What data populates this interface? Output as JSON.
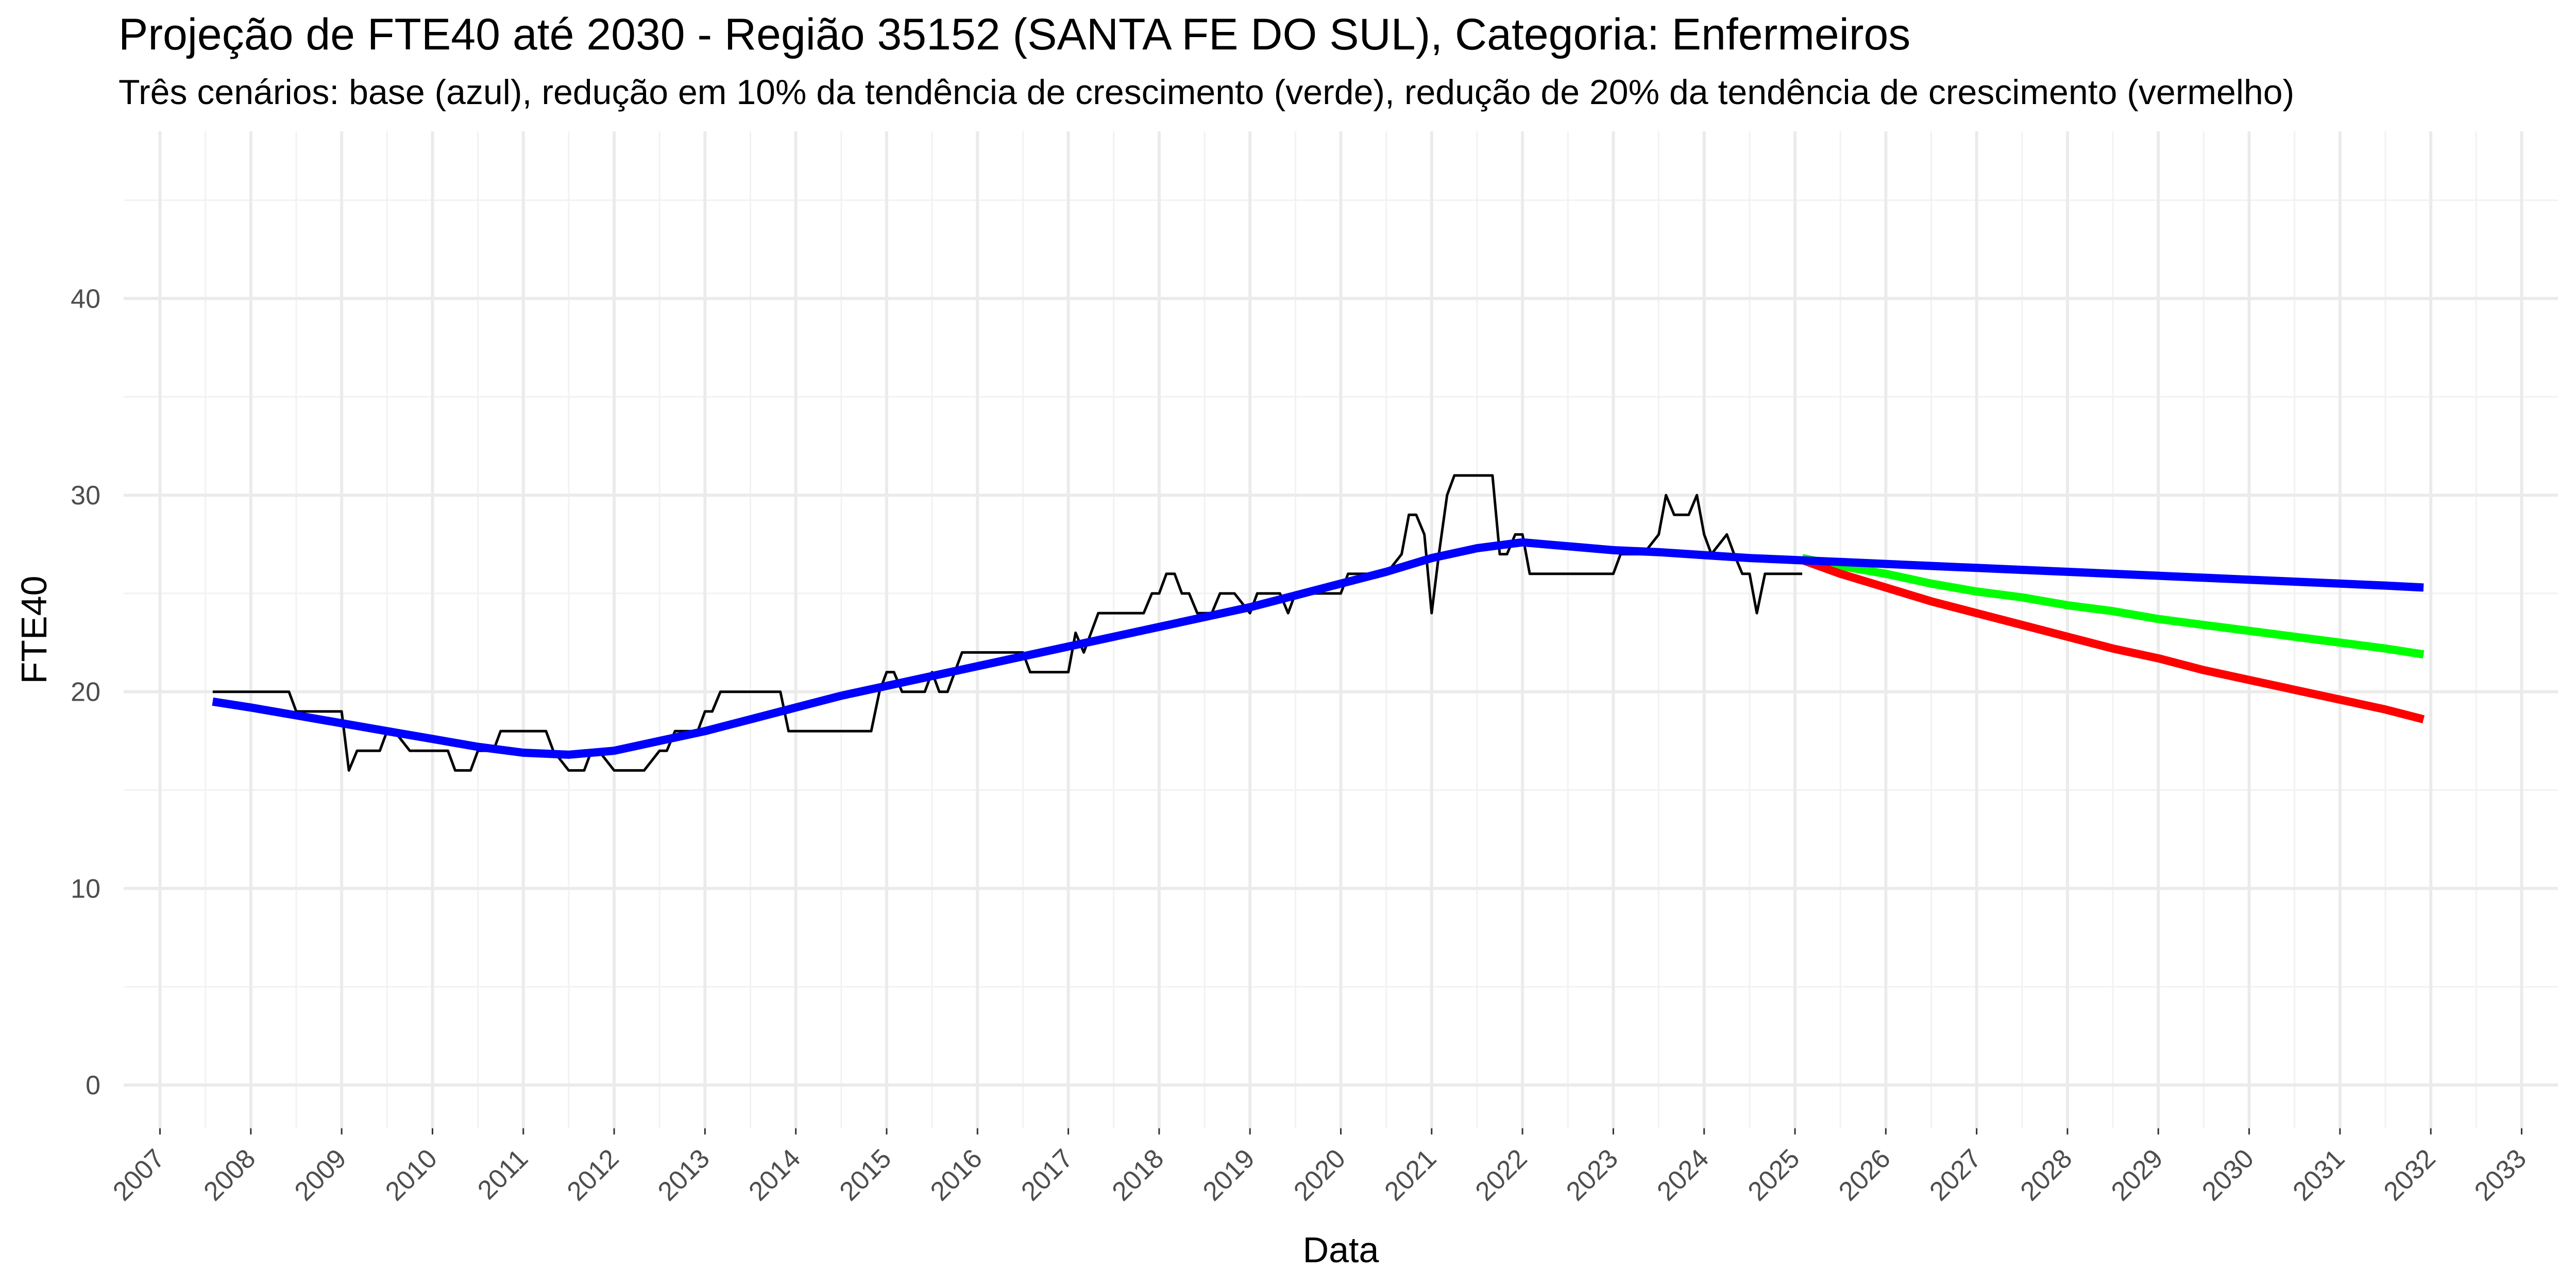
{
  "chart_data": {
    "type": "line",
    "title": "Projeção de FTE40 até 2030 - Região 35152 (SANTA FE DO SUL), Categoria: Enfermeiros",
    "subtitle": "Três cenários: base (azul), redução em 10% da tendência de crescimento (verde), redução de 20% da tendência de crescimento (vermelho)",
    "xlabel": "Data",
    "ylabel": "FTE40",
    "xlim": [
      2006.6,
      2033.4
    ],
    "ylim": [
      -2.2,
      48.5
    ],
    "x_ticks": [
      "2007",
      "2008",
      "2009",
      "2010",
      "2011",
      "2012",
      "2013",
      "2014",
      "2015",
      "2016",
      "2017",
      "2018",
      "2019",
      "2020",
      "2021",
      "2022",
      "2023",
      "2024",
      "2025",
      "2026",
      "2027",
      "2028",
      "2029",
      "2030",
      "2031",
      "2032",
      "2033"
    ],
    "y_ticks": [
      0,
      10,
      20,
      30,
      40
    ],
    "grid": true,
    "legend": "none",
    "series": [
      {
        "color": "#000000",
        "x": [
          2007.58,
          2008.42,
          2008.5,
          2009.0,
          2009.08,
          2009.17,
          2009.42,
          2009.5,
          2009.58,
          2009.75,
          2009.83,
          2010.17,
          2010.25,
          2010.42,
          2010.5,
          2010.67,
          2010.75,
          2010.83,
          2011.25,
          2011.33,
          2011.5,
          2011.67,
          2011.75,
          2011.83,
          2012.0,
          2012.08,
          2012.33,
          2012.5,
          2012.58,
          2012.67,
          2012.92,
          2013.0,
          2013.08,
          2013.17,
          2013.25,
          2013.83,
          2013.92,
          2014.67,
          2014.83,
          2014.92,
          2015.0,
          2015.08,
          2015.17,
          2015.42,
          2015.5,
          2015.58,
          2015.67,
          2015.75,
          2015.83,
          2016.0,
          2016.08,
          2016.17,
          2016.5,
          2016.58,
          2017.0,
          2017.08,
          2017.17,
          2017.25,
          2017.33,
          2017.42,
          2017.83,
          2017.92,
          2018.0,
          2018.08,
          2018.17,
          2018.25,
          2018.33,
          2018.42,
          2018.5,
          2018.58,
          2018.67,
          2018.75,
          2018.83,
          2019.0,
          2019.08,
          2019.17,
          2019.25,
          2019.33,
          2019.42,
          2019.5,
          2019.92,
          2020.0,
          2020.08,
          2020.5,
          2020.67,
          2020.75,
          2020.83,
          2020.92,
          2021.0,
          2021.08,
          2021.17,
          2021.25,
          2021.33,
          2021.42,
          2021.67,
          2021.75,
          2021.83,
          2021.92,
          2022.0,
          2022.08,
          2022.58,
          2022.67,
          2022.75,
          2023.0,
          2023.08,
          2023.17,
          2023.25,
          2023.33,
          2023.5,
          2023.58,
          2023.67,
          2023.75,
          2023.83,
          2023.92,
          2024.0,
          2024.08,
          2024.25,
          2024.33,
          2024.42,
          2024.5,
          2024.58,
          2024.67,
          2024.92,
          2025.08
        ],
        "y": [
          20,
          20,
          19,
          19,
          16,
          17,
          17,
          18,
          18,
          17,
          17,
          17,
          16,
          16,
          17,
          17,
          18,
          18,
          18,
          17,
          16,
          16,
          17,
          17,
          16,
          16,
          16,
          17,
          17,
          18,
          18,
          19,
          19,
          20,
          20,
          20,
          18,
          18,
          18,
          20,
          21,
          21,
          20,
          20,
          21,
          20,
          20,
          21,
          22,
          22,
          22,
          22,
          22,
          21,
          21,
          23,
          22,
          23,
          24,
          24,
          24,
          25,
          25,
          26,
          26,
          25,
          25,
          24,
          24,
          24,
          25,
          25,
          25,
          24,
          25,
          25,
          25,
          25,
          24,
          25,
          25,
          25,
          26,
          26,
          27,
          29,
          29,
          28,
          24,
          27,
          30,
          31,
          31,
          31,
          31,
          27,
          27,
          28,
          28,
          26,
          26,
          26,
          26,
          26,
          27,
          27,
          27,
          27,
          28,
          30,
          29,
          29,
          29,
          30,
          28,
          27,
          28,
          27,
          26,
          26,
          24,
          26,
          26,
          26
        ]
      },
      {
        "color": "#0000ff",
        "x": [
          2007.58,
          2008.0,
          2008.5,
          2009.0,
          2009.5,
          2010.0,
          2010.5,
          2011.0,
          2011.5,
          2012.0,
          2012.5,
          2013.0,
          2013.5,
          2014.0,
          2014.5,
          2015.0,
          2015.5,
          2016.0,
          2016.5,
          2017.0,
          2017.5,
          2018.0,
          2018.5,
          2019.0,
          2019.5,
          2020.0,
          2020.5,
          2021.0,
          2021.5,
          2022.0,
          2022.5,
          2023.0,
          2023.5,
          2024.0,
          2024.5,
          2025.0,
          2025.5,
          2026.0,
          2026.5,
          2027.0,
          2027.5,
          2028.0,
          2028.5,
          2029.0,
          2029.5,
          2030.0,
          2030.5,
          2031.0,
          2031.5,
          2031.92
        ],
        "y": [
          19.5,
          19.2,
          18.8,
          18.4,
          18.0,
          17.6,
          17.2,
          16.9,
          16.8,
          17.0,
          17.5,
          18.0,
          18.6,
          19.2,
          19.8,
          20.3,
          20.8,
          21.3,
          21.8,
          22.3,
          22.8,
          23.3,
          23.8,
          24.3,
          24.9,
          25.5,
          26.1,
          26.8,
          27.3,
          27.6,
          27.4,
          27.2,
          27.1,
          26.95,
          26.8,
          26.7,
          26.6,
          26.5,
          26.4,
          26.3,
          26.2,
          26.1,
          26.0,
          25.9,
          25.8,
          25.7,
          25.6,
          25.5,
          25.4,
          25.3
        ]
      },
      {
        "color": "#00ff00",
        "x": [
          2025.08,
          2025.5,
          2026.0,
          2026.5,
          2027.0,
          2027.5,
          2028.0,
          2028.5,
          2029.0,
          2029.5,
          2030.0,
          2030.5,
          2031.0,
          2031.5,
          2031.92
        ],
        "y": [
          26.8,
          26.4,
          26.0,
          25.5,
          25.1,
          24.8,
          24.4,
          24.1,
          23.7,
          23.4,
          23.1,
          22.8,
          22.5,
          22.2,
          21.9
        ]
      },
      {
        "color": "#ff0000",
        "x": [
          2025.08,
          2025.5,
          2026.0,
          2026.5,
          2027.0,
          2027.5,
          2028.0,
          2028.5,
          2029.0,
          2029.5,
          2030.0,
          2030.5,
          2031.0,
          2031.5,
          2031.92
        ],
        "y": [
          26.7,
          26.0,
          25.3,
          24.6,
          24.0,
          23.4,
          22.8,
          22.2,
          21.7,
          21.1,
          20.6,
          20.1,
          19.6,
          19.1,
          18.6
        ]
      }
    ]
  }
}
